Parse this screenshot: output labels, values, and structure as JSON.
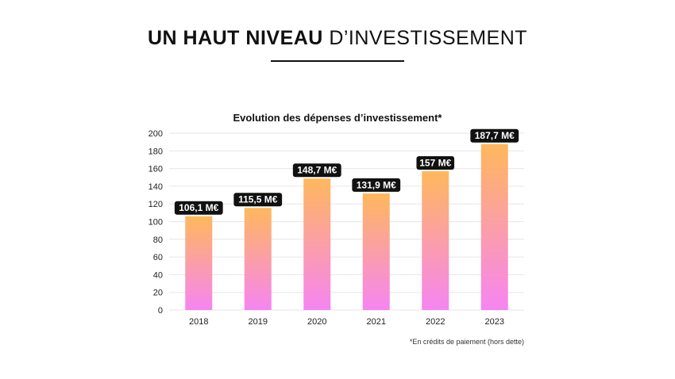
{
  "header": {
    "title_bold": "UN HAUT NIVEAU",
    "title_light": "D’INVESTISSEMENT"
  },
  "chart_data": {
    "type": "bar",
    "title": "Evolution des dépenses d’investissement*",
    "categories": [
      "2018",
      "2019",
      "2020",
      "2021",
      "2022",
      "2023"
    ],
    "values": [
      106.1,
      115.5,
      148.7,
      131.9,
      157,
      187.7
    ],
    "data_labels": [
      "106,1 M€",
      "115,5 M€",
      "148,7 M€",
      "131,9 M€",
      "157 M€",
      "187,7 M€"
    ],
    "yticks": [
      0,
      20,
      40,
      60,
      80,
      100,
      120,
      140,
      160,
      180,
      200
    ],
    "ylim": [
      0,
      200
    ],
    "grid": true,
    "bar_gradient": {
      "top": "#FFB85C",
      "bottom": "#F685F2"
    },
    "footnote": "*En crédits de paiement (hors dette)"
  }
}
